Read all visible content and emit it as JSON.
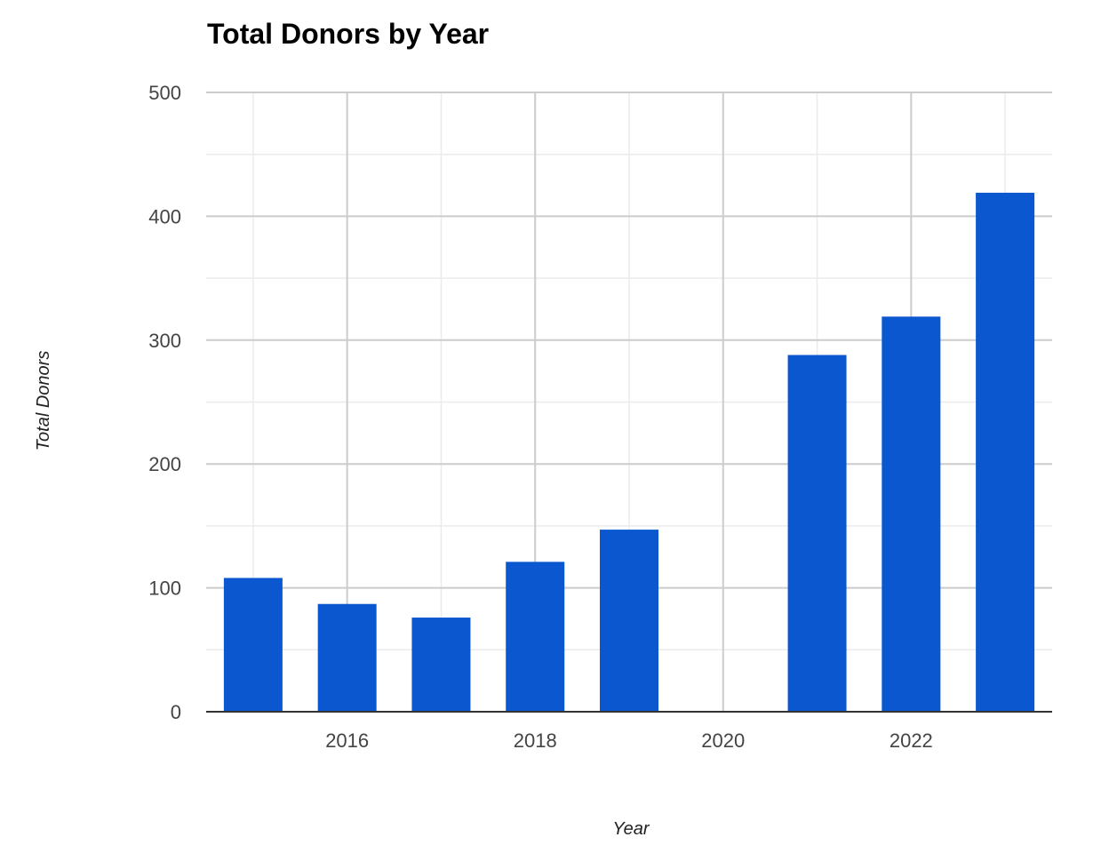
{
  "colors": {
    "bar": "#0b57d0",
    "major_grid": "#cccccc",
    "minor_grid": "#ebebeb",
    "baseline": "#333333",
    "tick_text": "#444444"
  },
  "chart_data": {
    "type": "bar",
    "title": "Total Donors by Year",
    "xlabel": "Year",
    "ylabel": "Total Donors",
    "x": [
      2015,
      2016,
      2017,
      2018,
      2019,
      2020,
      2021,
      2022,
      2023
    ],
    "values": [
      108,
      87,
      76,
      121,
      147,
      0,
      288,
      319,
      419
    ],
    "xlim": [
      2014.5,
      2023.5
    ],
    "ylim": [
      0,
      500
    ],
    "y_major_ticks": [
      0,
      100,
      200,
      300,
      400,
      500
    ],
    "x_tick_labels": [
      "2016",
      "2018",
      "2020",
      "2022"
    ],
    "grid": true,
    "legend": "none"
  }
}
